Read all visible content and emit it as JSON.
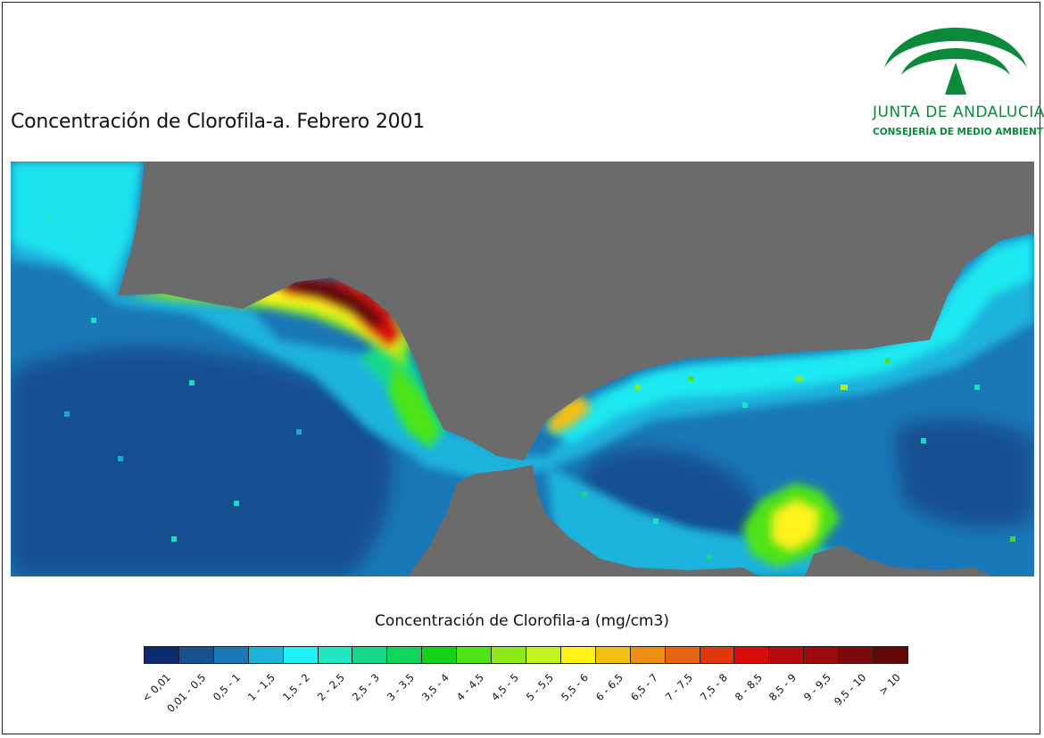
{
  "title": "Concentración de Clorofila-a. Febrero 2001",
  "logo": {
    "name": "JUNTA DE ANDALUCIA",
    "subtitle": "CONSEJERÍA DE MEDIO AMBIENTE",
    "color": "#0b8a3b"
  },
  "map": {
    "land_color": "#6b6b6b"
  },
  "legend": {
    "title": "Concentración de Clorofila-a (mg/cm3)",
    "classes": [
      {
        "label": "< 0,01",
        "color": "#0d2a6e"
      },
      {
        "label": "0,01 - 0,5",
        "color": "#17508f"
      },
      {
        "label": "0,5 - 1",
        "color": "#1b78b8"
      },
      {
        "label": "1 - 1,5",
        "color": "#1eb3dc"
      },
      {
        "label": "1,5 - 2",
        "color": "#1ff2f4"
      },
      {
        "label": "2 - 2,5",
        "color": "#1ee8c2"
      },
      {
        "label": "2,5 - 3",
        "color": "#14d98a"
      },
      {
        "label": "3 - 3,5",
        "color": "#0fd65a"
      },
      {
        "label": "3,5 - 4",
        "color": "#12d21a"
      },
      {
        "label": "4 - 4,5",
        "color": "#4ee314"
      },
      {
        "label": "4,5 - 5",
        "color": "#8cea1a"
      },
      {
        "label": "5 - 5,5",
        "color": "#c2f31f"
      },
      {
        "label": "5,5 - 6",
        "color": "#fff31a"
      },
      {
        "label": "6 - 6,5",
        "color": "#f4c016"
      },
      {
        "label": "6,5 - 7",
        "color": "#ee8f12"
      },
      {
        "label": "7 - 7,5",
        "color": "#e8640f"
      },
      {
        "label": "7,5 - 8",
        "color": "#e0370e"
      },
      {
        "label": "8 - 8,5",
        "color": "#d90b0b"
      },
      {
        "label": "8,5 - 9",
        "color": "#b8090f"
      },
      {
        "label": "9 - 9,5",
        "color": "#9a0a0f"
      },
      {
        "label": "9,5 - 10",
        "color": "#7c0a0c"
      },
      {
        "label": "> 10",
        "color": "#620808"
      }
    ]
  }
}
